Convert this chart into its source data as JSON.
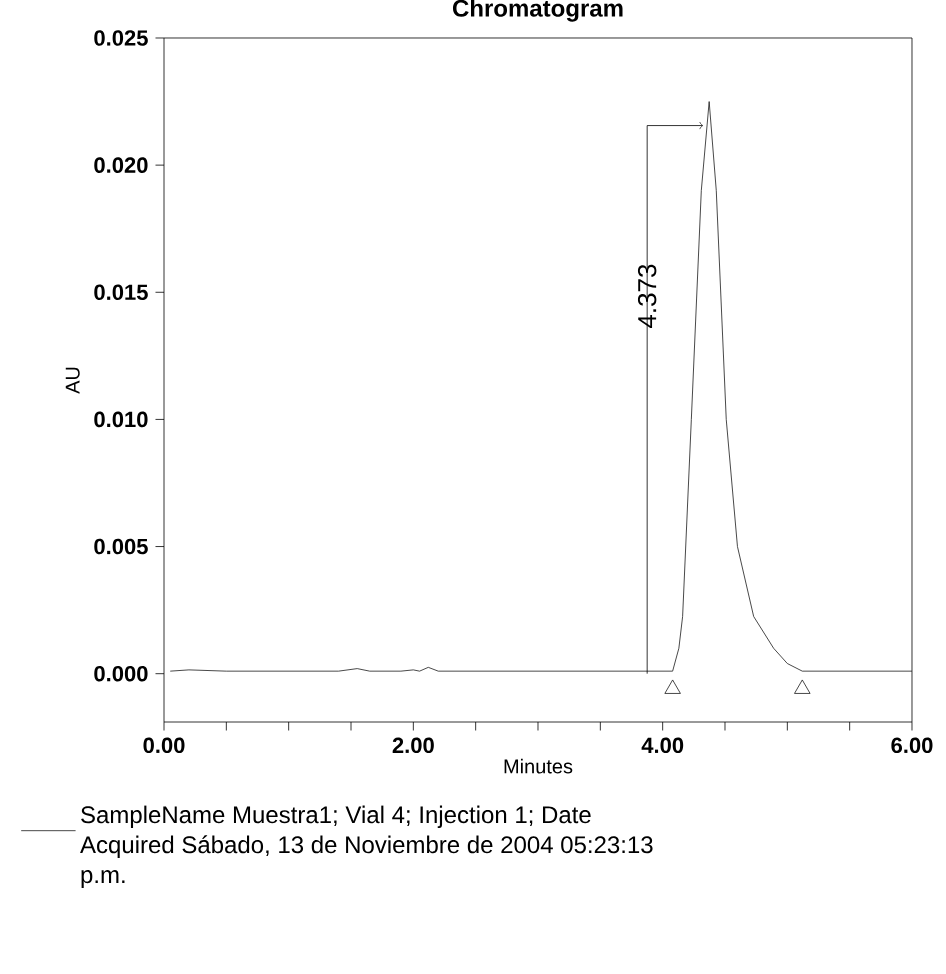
{
  "chart_data": {
    "type": "line",
    "title": "Chromatogram",
    "xlabel": "Minutes",
    "ylabel": "AU",
    "xlim": [
      0,
      6
    ],
    "ylim": [
      -0.0019,
      0.025
    ],
    "xticks": [
      {
        "value": 0,
        "label": "0.00"
      },
      {
        "value": 0.5,
        "label": null
      },
      {
        "value": 1,
        "label": null
      },
      {
        "value": 1.5,
        "label": null
      },
      {
        "value": 2,
        "label": "2.00"
      },
      {
        "value": 2.5,
        "label": null
      },
      {
        "value": 3,
        "label": null
      },
      {
        "value": 3.5,
        "label": null
      },
      {
        "value": 4,
        "label": "4.00"
      },
      {
        "value": 4.5,
        "label": null
      },
      {
        "value": 5,
        "label": null
      },
      {
        "value": 5.5,
        "label": null
      },
      {
        "value": 6,
        "label": "6.00"
      }
    ],
    "yticks": [
      {
        "value": 0,
        "label": "0.000"
      },
      {
        "value": 0.005,
        "label": "0.005"
      },
      {
        "value": 0.01,
        "label": "0.010"
      },
      {
        "value": 0.015,
        "label": "0.015"
      },
      {
        "value": 0.02,
        "label": "0.020"
      },
      {
        "value": 0.025,
        "label": "0.025"
      }
    ],
    "legend": "bottom",
    "series": [
      {
        "name": "SampleName Muestra1; Vial 4; Injection 1; Date Acquired Sábado, 13 de Noviembre de 2004 05:23:13 p.m.",
        "color": "#1a1a1a",
        "line_style": "solid",
        "marker": "none",
        "x": [
          0.05,
          0.2,
          0.5,
          1.0,
          1.4,
          1.55,
          1.65,
          1.9,
          2.0,
          2.05,
          2.12,
          2.2,
          2.5,
          3.0,
          3.5,
          4.0,
          4.08,
          4.13,
          4.16,
          4.23,
          4.31,
          4.373,
          4.43,
          4.51,
          4.6,
          4.73,
          4.89,
          5.0,
          5.12,
          5.5,
          6.0
        ],
        "values": [
          0.0001,
          0.00015,
          0.0001,
          0.0001,
          0.0001,
          0.0002,
          0.0001,
          0.0001,
          0.00015,
          0.0001,
          0.00025,
          0.0001,
          0.0001,
          0.0001,
          0.0001,
          0.0001,
          0.0001,
          0.001,
          0.00225,
          0.01,
          0.019,
          0.0225,
          0.019,
          0.01,
          0.005,
          0.00225,
          0.001,
          0.0004,
          0.0001,
          0.0001,
          0.0001
        ]
      },
      {
        "type": "scatter",
        "color": "#1a1a1a",
        "marker": "triangle",
        "x": [
          4.08,
          5.12
        ],
        "values": [
          -0.0006,
          -0.0006
        ]
      }
    ],
    "annotations": [
      "4.373"
    ]
  }
}
